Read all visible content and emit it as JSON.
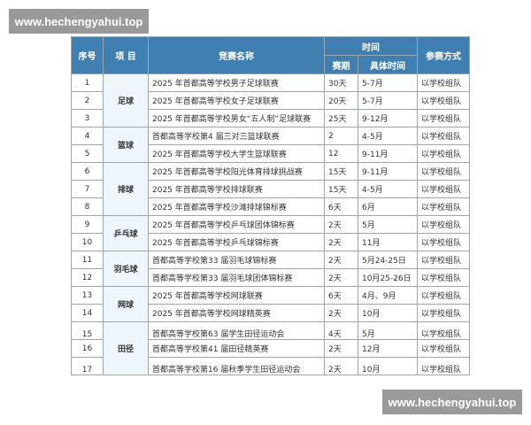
{
  "watermark": "www.hechengyahui.top",
  "headers": {
    "seq": "序号",
    "project": "项 目",
    "name": "竞赛名称",
    "time": "时间",
    "method": "参赛方式",
    "period": "赛期",
    "date": "具体时间"
  },
  "groups": [
    {
      "project": "足球",
      "rows": [
        [
          "1",
          "2025 年首都高等学校男子足球联赛",
          "30天",
          "5-7月",
          "以学校组队"
        ],
        [
          "2",
          "2025 年首都高等学校女子足球联赛",
          "20天",
          "5-7月",
          "以学校组队"
        ],
        [
          "3",
          "2025 年首都高等学校男女“五人制”足球联赛",
          "25天",
          "9-12月",
          "以学校组队"
        ]
      ]
    },
    {
      "project": "篮球",
      "rows": [
        [
          "4",
          "首都高等学校第4 届三对三篮球联赛",
          "2",
          "4-5月",
          "以学校组队"
        ],
        [
          "5",
          "2025 年首都高等学校大学生篮球联赛",
          "12",
          "9-11月",
          "以学校组队"
        ]
      ]
    },
    {
      "project": "排球",
      "rows": [
        [
          "6",
          "2025 年首都高等学校阳光体育排球挑战赛",
          "15天",
          "9-11月",
          "以学校组队"
        ],
        [
          "7",
          "2025 年首都高等学校排球联赛",
          "15天",
          "4-5月",
          "以学校组队"
        ],
        [
          "8",
          "2025 年首都高等学校沙滩排球锦标赛",
          "6天",
          "6月",
          "以学校组队"
        ]
      ]
    },
    {
      "project": "乒乓球",
      "rows": [
        [
          "9",
          "2025 年首都高等学校乒乓球团体锦标赛",
          "2天",
          "5月",
          "以学校组队"
        ],
        [
          "10",
          "2025 年首都高等学校乒乓球锦标赛",
          "2天",
          "11月",
          "以学校组队"
        ]
      ]
    },
    {
      "project": "羽毛球",
      "rows": [
        [
          "11",
          "首都高等学校第33 届羽毛球锦标赛",
          "2天",
          "5月24-25日",
          "以学校组队"
        ],
        [
          "12",
          "首都高等学校第33 届羽毛球团体锦标赛",
          "2天",
          "10月25-26日",
          "以学校组队"
        ]
      ]
    },
    {
      "project": "网球",
      "rows": [
        [
          "13",
          "2025 年首都高等学校网球联赛",
          "6天",
          "4月、9月",
          "以学校组队"
        ],
        [
          "14",
          "2025 年首都高等学校网球精英赛",
          "2天",
          "10月",
          "以学校组队"
        ]
      ]
    },
    {
      "project": "田径",
      "rows": [
        [
          "15",
          "首都高等学校第63 届学生田径运动会",
          "4天",
          "5月",
          "以学校组队"
        ],
        [
          "16",
          "首都高等学校第41 届田径精英赛",
          "2天",
          "12月",
          "以学校组队"
        ],
        [
          "17",
          "首都高等学校第16 届秋季学生田径运动会",
          "2天",
          "10月",
          "以学校组队"
        ]
      ]
    }
  ]
}
